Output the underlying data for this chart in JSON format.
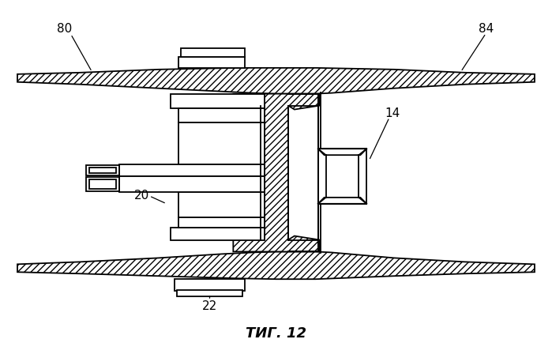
{
  "title": "ΤИГ. 12",
  "bg_color": "#ffffff",
  "line_color": "#000000",
  "lw": 1.3
}
